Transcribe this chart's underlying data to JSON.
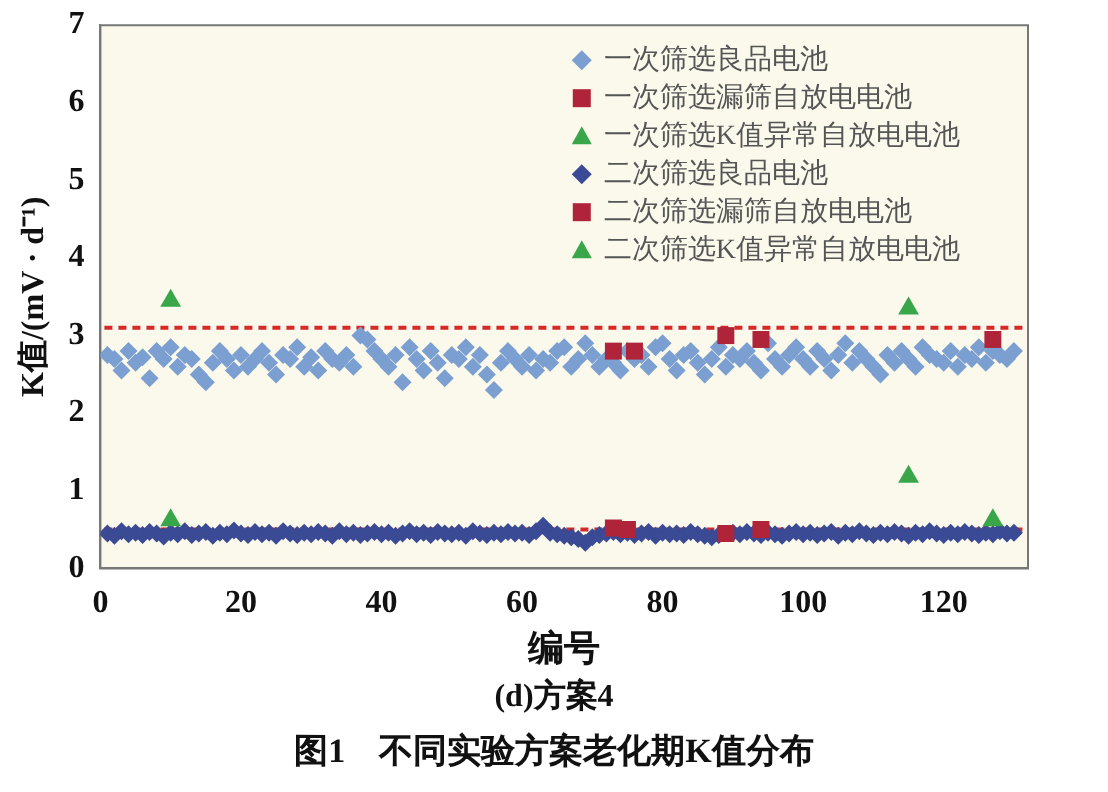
{
  "chart_data": {
    "type": "scatter",
    "xlabel": "编号",
    "ylabel": "K值/(mV · d⁻¹)",
    "annotations": [
      "(d)方案4",
      "图1　不同实验方案老化期K值分布"
    ],
    "x": [
      1,
      2,
      3,
      4,
      5,
      6,
      7,
      8,
      9,
      10,
      11,
      12,
      13,
      14,
      15,
      16,
      17,
      18,
      19,
      20,
      21,
      22,
      23,
      24,
      25,
      26,
      27,
      28,
      29,
      30,
      31,
      32,
      33,
      34,
      35,
      36,
      37,
      38,
      39,
      40,
      41,
      42,
      43,
      44,
      45,
      46,
      47,
      48,
      49,
      50,
      51,
      52,
      53,
      54,
      55,
      56,
      57,
      58,
      59,
      60,
      61,
      62,
      63,
      64,
      65,
      66,
      67,
      68,
      69,
      70,
      71,
      72,
      73,
      74,
      75,
      76,
      77,
      78,
      79,
      80,
      81,
      82,
      83,
      84,
      85,
      86,
      87,
      88,
      89,
      90,
      91,
      92,
      93,
      94,
      95,
      96,
      97,
      98,
      99,
      100,
      101,
      102,
      103,
      104,
      105,
      106,
      107,
      108,
      109,
      110,
      111,
      112,
      113,
      114,
      115,
      116,
      117,
      118,
      119,
      120,
      121,
      122,
      123,
      124,
      125,
      126,
      127,
      128,
      129,
      130
    ],
    "series": [
      {
        "name": "一次筛选良品电池",
        "color": "#7b9fd0",
        "marker": "diamond",
        "values": [
          2.75,
          2.7,
          2.55,
          2.8,
          2.65,
          2.72,
          2.45,
          2.8,
          2.7,
          2.85,
          2.6,
          2.75,
          2.7,
          2.5,
          2.4,
          2.65,
          2.8,
          2.7,
          2.55,
          2.75,
          2.6,
          2.7,
          2.8,
          2.65,
          2.5,
          2.75,
          2.7,
          2.85,
          2.6,
          2.72,
          2.55,
          2.8,
          2.7,
          2.65,
          2.75,
          2.6,
          3.0,
          2.95,
          2.8,
          2.7,
          2.6,
          2.75,
          2.4,
          2.85,
          2.7,
          2.55,
          2.8,
          2.65,
          2.45,
          2.75,
          2.7,
          2.85,
          2.6,
          2.75,
          2.5,
          2.3,
          2.65,
          2.8,
          2.7,
          2.6,
          2.75,
          2.55,
          2.7,
          2.65,
          2.8,
          2.85,
          2.6,
          2.7,
          2.9,
          2.75,
          2.6,
          2.7,
          2.65,
          2.55,
          2.8,
          2.7,
          2.75,
          2.6,
          2.85,
          2.9,
          2.7,
          2.55,
          2.75,
          2.8,
          2.65,
          2.5,
          2.7,
          2.85,
          2.6,
          2.75,
          2.7,
          2.8,
          2.65,
          2.55,
          2.9,
          2.7,
          2.6,
          2.75,
          2.85,
          2.7,
          2.6,
          2.8,
          2.7,
          2.55,
          2.75,
          2.9,
          2.65,
          2.8,
          2.7,
          2.6,
          2.5,
          2.75,
          2.65,
          2.8,
          2.7,
          2.6,
          2.85,
          2.75,
          2.7,
          2.65,
          2.8,
          2.6,
          2.75,
          2.7,
          2.85,
          2.65,
          2.8,
          2.75,
          2.7,
          2.8
        ]
      },
      {
        "name": "一次筛选漏筛自放电电池",
        "color": "#b0243a",
        "marker": "square",
        "x": [
          73,
          76,
          89,
          94,
          127
        ],
        "values": [
          2.8,
          2.8,
          3.0,
          2.95,
          2.95
        ]
      },
      {
        "name": "一次筛选K值异常自放电电池",
        "color": "#3aa64a",
        "marker": "triangle",
        "x": [
          10,
          115
        ],
        "values": [
          3.45,
          3.35
        ]
      },
      {
        "name": "二次筛选良品电池",
        "color": "#3a4a94",
        "marker": "diamond",
        "values": [
          0.45,
          0.42,
          0.48,
          0.44,
          0.46,
          0.43,
          0.47,
          0.45,
          0.41,
          0.46,
          0.44,
          0.48,
          0.43,
          0.45,
          0.47,
          0.42,
          0.46,
          0.44,
          0.49,
          0.45,
          0.43,
          0.47,
          0.44,
          0.46,
          0.42,
          0.48,
          0.45,
          0.43,
          0.46,
          0.44,
          0.47,
          0.45,
          0.42,
          0.48,
          0.44,
          0.46,
          0.43,
          0.45,
          0.47,
          0.44,
          0.46,
          0.42,
          0.45,
          0.48,
          0.44,
          0.46,
          0.43,
          0.47,
          0.45,
          0.44,
          0.46,
          0.42,
          0.48,
          0.45,
          0.43,
          0.46,
          0.44,
          0.47,
          0.45,
          0.46,
          0.43,
          0.48,
          0.55,
          0.46,
          0.44,
          0.42,
          0.4,
          0.38,
          0.33,
          0.4,
          0.43,
          0.45,
          0.47,
          0.44,
          0.46,
          0.43,
          0.45,
          0.47,
          0.42,
          0.46,
          0.44,
          0.45,
          0.43,
          0.47,
          0.44,
          0.42,
          0.4,
          0.43,
          null,
          0.46,
          0.44,
          0.47,
          0.45,
          0.43,
          0.46,
          0.44,
          0.42,
          0.45,
          0.47,
          0.44,
          0.46,
          0.43,
          0.45,
          0.47,
          0.42,
          0.46,
          0.44,
          0.48,
          0.45,
          0.43,
          0.46,
          0.44,
          0.47,
          0.45,
          0.42,
          0.46,
          0.44,
          0.48,
          0.45,
          0.43,
          0.46,
          0.44,
          0.47,
          0.45,
          0.43,
          0.46,
          0.44,
          0.48,
          0.45,
          0.46
        ]
      },
      {
        "name": "二次筛选漏筛自放电电池",
        "color": "#b0243a",
        "marker": "square",
        "x": [
          73,
          75,
          89,
          94
        ],
        "values": [
          0.52,
          0.5,
          0.45,
          0.5
        ]
      },
      {
        "name": "二次筛选K值异常自放电电池",
        "color": "#3aa64a",
        "marker": "triangle",
        "x": [
          10,
          115,
          127
        ],
        "values": [
          0.62,
          1.18,
          0.62
        ]
      }
    ],
    "xlim": [
      0,
      132
    ],
    "xticks": [
      0,
      20,
      40,
      60,
      80,
      100,
      120
    ],
    "ylim": [
      0,
      7
    ],
    "yticks": [
      0,
      1,
      2,
      3,
      4,
      5,
      6,
      7
    ],
    "ref_lines": [
      {
        "axis": "y",
        "value": 3.1,
        "color": "#d42a2a",
        "line_style": "dashed"
      },
      {
        "axis": "y",
        "value": 0.5,
        "color": "#d42a2a",
        "line_style": "dashed"
      }
    ],
    "legend": "top right",
    "grid": false
  }
}
